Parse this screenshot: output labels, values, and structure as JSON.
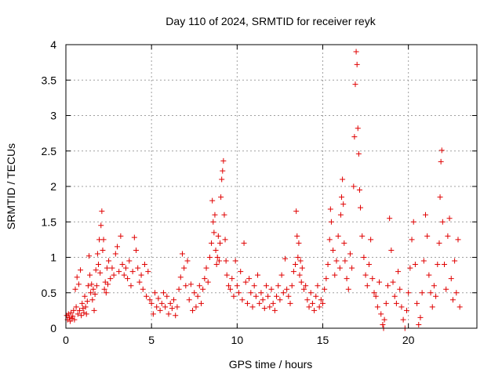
{
  "chart_data": {
    "type": "scatter",
    "title": "Day 110 of 2024, SRMTID for receiver reyk",
    "xlabel": "GPS time / hours",
    "ylabel": "SRMTID / TECUs",
    "xlim": [
      0,
      24
    ],
    "ylim": [
      0,
      4
    ],
    "xticks": [
      0,
      5,
      10,
      15,
      20
    ],
    "yticks": [
      0,
      0.5,
      1,
      1.5,
      2,
      2.5,
      3,
      3.5,
      4
    ],
    "xtick_labels": [
      "0",
      "5",
      "10",
      "15",
      "20"
    ],
    "ytick_labels": [
      "0",
      "0.5",
      "1",
      "1.5",
      "2",
      "2.5",
      "3",
      "3.5",
      "4"
    ],
    "grid": true,
    "marker": "+",
    "color": "#e00000",
    "series": [
      {
        "name": "SRMTID",
        "points": [
          [
            0.05,
            0.18
          ],
          [
            0.1,
            0.12
          ],
          [
            0.15,
            0.2
          ],
          [
            0.2,
            0.15
          ],
          [
            0.25,
            0.1
          ],
          [
            0.3,
            0.22
          ],
          [
            0.35,
            0.14
          ],
          [
            0.4,
            0.17
          ],
          [
            0.45,
            0.25
          ],
          [
            0.5,
            0.12
          ],
          [
            0.55,
            0.55
          ],
          [
            0.6,
            0.3
          ],
          [
            0.65,
            0.72
          ],
          [
            0.7,
            0.2
          ],
          [
            0.75,
            0.62
          ],
          [
            0.8,
            0.25
          ],
          [
            0.85,
            0.82
          ],
          [
            0.9,
            0.18
          ],
          [
            0.95,
            0.35
          ],
          [
            1.0,
            0.28
          ],
          [
            1.05,
            0.22
          ],
          [
            1.1,
            0.45
          ],
          [
            1.15,
            0.3
          ],
          [
            1.2,
            0.2
          ],
          [
            1.25,
            0.38
          ],
          [
            1.3,
            0.6
          ],
          [
            1.35,
            1.02
          ],
          [
            1.4,
            0.75
          ],
          [
            1.45,
            0.5
          ],
          [
            1.5,
            0.62
          ],
          [
            1.55,
            0.4
          ],
          [
            1.6,
            0.55
          ],
          [
            1.65,
            0.25
          ],
          [
            1.7,
            0.48
          ],
          [
            1.75,
            0.82
          ],
          [
            1.8,
            0.6
          ],
          [
            1.85,
            1.05
          ],
          [
            1.9,
            0.9
          ],
          [
            1.95,
            1.25
          ],
          [
            2.0,
            0.78
          ],
          [
            2.05,
            1.45
          ],
          [
            2.1,
            1.65
          ],
          [
            2.15,
            1.1
          ],
          [
            2.2,
            1.25
          ],
          [
            2.25,
            0.55
          ],
          [
            2.3,
            0.65
          ],
          [
            2.35,
            0.5
          ],
          [
            2.4,
            0.85
          ],
          [
            2.45,
            0.62
          ],
          [
            2.5,
            0.95
          ],
          [
            2.6,
            0.7
          ],
          [
            2.7,
            0.85
          ],
          [
            2.8,
            0.75
          ],
          [
            2.9,
            1.05
          ],
          [
            3.0,
            1.15
          ],
          [
            3.1,
            0.8
          ],
          [
            3.2,
            1.3
          ],
          [
            3.3,
            0.9
          ],
          [
            3.4,
            0.75
          ],
          [
            3.5,
            0.85
          ],
          [
            3.6,
            0.7
          ],
          [
            3.7,
            0.95
          ],
          [
            3.8,
            0.6
          ],
          [
            3.9,
            0.8
          ],
          [
            4.0,
            1.28
          ],
          [
            4.1,
            1.1
          ],
          [
            4.2,
            0.85
          ],
          [
            4.3,
            0.65
          ],
          [
            4.4,
            0.75
          ],
          [
            4.5,
            0.55
          ],
          [
            4.6,
            0.9
          ],
          [
            4.7,
            0.45
          ],
          [
            4.8,
            0.8
          ],
          [
            4.9,
            0.4
          ],
          [
            5.0,
            0.35
          ],
          [
            5.1,
            0.2
          ],
          [
            5.2,
            0.5
          ],
          [
            5.3,
            0.3
          ],
          [
            5.4,
            0.42
          ],
          [
            5.5,
            0.25
          ],
          [
            5.6,
            0.35
          ],
          [
            5.7,
            0.5
          ],
          [
            5.8,
            0.3
          ],
          [
            5.9,
            0.45
          ],
          [
            6.0,
            0.2
          ],
          [
            6.1,
            0.35
          ],
          [
            6.2,
            0.28
          ],
          [
            6.3,
            0.4
          ],
          [
            6.4,
            0.18
          ],
          [
            6.5,
            0.3
          ],
          [
            6.6,
            0.55
          ],
          [
            6.7,
            0.72
          ],
          [
            6.8,
            1.05
          ],
          [
            6.9,
            0.85
          ],
          [
            7.0,
            0.6
          ],
          [
            7.1,
            0.95
          ],
          [
            7.2,
            0.4
          ],
          [
            7.3,
            0.62
          ],
          [
            7.4,
            0.25
          ],
          [
            7.5,
            0.5
          ],
          [
            7.6,
            0.3
          ],
          [
            7.7,
            0.45
          ],
          [
            7.8,
            0.6
          ],
          [
            7.9,
            0.35
          ],
          [
            8.0,
            0.55
          ],
          [
            8.1,
            0.7
          ],
          [
            8.2,
            0.85
          ],
          [
            8.3,
            0.65
          ],
          [
            8.4,
            1.0
          ],
          [
            8.5,
            1.2
          ],
          [
            8.55,
            1.8
          ],
          [
            8.6,
            1.5
          ],
          [
            8.65,
            1.35
          ],
          [
            8.7,
            1.6
          ],
          [
            8.75,
            1.1
          ],
          [
            8.8,
            0.9
          ],
          [
            8.85,
            1.0
          ],
          [
            8.9,
            1.3
          ],
          [
            8.95,
            0.95
          ],
          [
            9.0,
            1.2
          ],
          [
            9.05,
            1.85
          ],
          [
            9.1,
            2.1
          ],
          [
            9.15,
            2.22
          ],
          [
            9.2,
            2.36
          ],
          [
            9.25,
            1.6
          ],
          [
            9.3,
            1.25
          ],
          [
            9.35,
            0.95
          ],
          [
            9.4,
            0.75
          ],
          [
            9.5,
            0.6
          ],
          [
            9.6,
            0.55
          ],
          [
            9.7,
            0.7
          ],
          [
            9.8,
            0.45
          ],
          [
            9.9,
            0.95
          ],
          [
            10.0,
            0.6
          ],
          [
            10.1,
            0.5
          ],
          [
            10.2,
            0.8
          ],
          [
            10.3,
            0.4
          ],
          [
            10.4,
            1.2
          ],
          [
            10.5,
            0.65
          ],
          [
            10.6,
            0.35
          ],
          [
            10.7,
            0.7
          ],
          [
            10.8,
            0.5
          ],
          [
            10.9,
            0.3
          ],
          [
            11.0,
            0.6
          ],
          [
            11.1,
            0.45
          ],
          [
            11.2,
            0.75
          ],
          [
            11.3,
            0.35
          ],
          [
            11.4,
            0.5
          ],
          [
            11.5,
            0.4
          ],
          [
            11.6,
            0.28
          ],
          [
            11.7,
            0.6
          ],
          [
            11.8,
            0.45
          ],
          [
            11.9,
            0.3
          ],
          [
            12.0,
            0.55
          ],
          [
            12.1,
            0.35
          ],
          [
            12.2,
            0.25
          ],
          [
            12.3,
            0.45
          ],
          [
            12.4,
            0.6
          ],
          [
            12.5,
            0.4
          ],
          [
            12.6,
            0.75
          ],
          [
            12.7,
            0.5
          ],
          [
            12.8,
            0.98
          ],
          [
            12.9,
            0.55
          ],
          [
            13.0,
            0.45
          ],
          [
            13.1,
            0.35
          ],
          [
            13.2,
            0.6
          ],
          [
            13.3,
            0.8
          ],
          [
            13.4,
            0.9
          ],
          [
            13.45,
            1.65
          ],
          [
            13.5,
            1.3
          ],
          [
            13.55,
            1.0
          ],
          [
            13.6,
            1.2
          ],
          [
            13.65,
            0.75
          ],
          [
            13.7,
            0.95
          ],
          [
            13.75,
            0.65
          ],
          [
            13.8,
            0.85
          ],
          [
            13.9,
            0.55
          ],
          [
            14.0,
            0.6
          ],
          [
            14.1,
            0.4
          ],
          [
            14.2,
            0.3
          ],
          [
            14.3,
            0.5
          ],
          [
            14.4,
            0.35
          ],
          [
            14.5,
            0.25
          ],
          [
            14.6,
            0.45
          ],
          [
            14.7,
            0.6
          ],
          [
            14.8,
            0.3
          ],
          [
            14.9,
            0.4
          ],
          [
            15.0,
            0.35
          ],
          [
            15.1,
            0.55
          ],
          [
            15.2,
            0.7
          ],
          [
            15.3,
            0.9
          ],
          [
            15.4,
            1.25
          ],
          [
            15.45,
            1.68
          ],
          [
            15.5,
            1.5
          ],
          [
            15.6,
            1.1
          ],
          [
            15.7,
            0.75
          ],
          [
            15.8,
            0.95
          ],
          [
            15.9,
            1.3
          ],
          [
            16.0,
            0.85
          ],
          [
            16.05,
            1.6
          ],
          [
            16.1,
            1.85
          ],
          [
            16.15,
            2.1
          ],
          [
            16.2,
            1.75
          ],
          [
            16.25,
            1.2
          ],
          [
            16.3,
            0.95
          ],
          [
            16.4,
            0.7
          ],
          [
            16.5,
            0.55
          ],
          [
            16.6,
            1.05
          ],
          [
            16.7,
            0.85
          ],
          [
            16.8,
            2.0
          ],
          [
            16.85,
            2.7
          ],
          [
            16.9,
            3.44
          ],
          [
            16.95,
            3.9
          ],
          [
            17.0,
            3.72
          ],
          [
            17.05,
            2.82
          ],
          [
            17.1,
            2.46
          ],
          [
            17.15,
            1.95
          ],
          [
            17.2,
            1.7
          ],
          [
            17.3,
            1.3
          ],
          [
            17.4,
            1.0
          ],
          [
            17.5,
            0.75
          ],
          [
            17.6,
            0.6
          ],
          [
            17.7,
            0.9
          ],
          [
            17.8,
            1.25
          ],
          [
            17.9,
            0.7
          ],
          [
            18.0,
            0.5
          ],
          [
            18.1,
            0.45
          ],
          [
            18.2,
            0.3
          ],
          [
            18.3,
            0.65
          ],
          [
            18.4,
            0.2
          ],
          [
            18.5,
            0.05
          ],
          [
            18.55,
            0.0
          ],
          [
            18.6,
            0.12
          ],
          [
            18.7,
            0.35
          ],
          [
            18.8,
            0.6
          ],
          [
            18.9,
            1.55
          ],
          [
            19.0,
            1.1
          ],
          [
            19.1,
            0.65
          ],
          [
            19.2,
            0.45
          ],
          [
            19.3,
            0.35
          ],
          [
            19.4,
            0.8
          ],
          [
            19.5,
            0.55
          ],
          [
            19.6,
            0.3
          ],
          [
            19.7,
            0.12
          ],
          [
            19.8,
            0.0
          ],
          [
            19.9,
            0.25
          ],
          [
            20.0,
            0.5
          ],
          [
            20.1,
            0.85
          ],
          [
            20.2,
            1.25
          ],
          [
            20.3,
            1.5
          ],
          [
            20.4,
            0.9
          ],
          [
            20.5,
            0.35
          ],
          [
            20.6,
            0.05
          ],
          [
            20.7,
            0.15
          ],
          [
            20.8,
            0.5
          ],
          [
            20.9,
            0.95
          ],
          [
            21.0,
            1.6
          ],
          [
            21.1,
            1.3
          ],
          [
            21.2,
            0.75
          ],
          [
            21.3,
            0.5
          ],
          [
            21.4,
            0.3
          ],
          [
            21.5,
            0.6
          ],
          [
            21.6,
            0.45
          ],
          [
            21.7,
            0.9
          ],
          [
            21.8,
            1.2
          ],
          [
            21.85,
            1.85
          ],
          [
            21.9,
            2.35
          ],
          [
            21.95,
            2.51
          ],
          [
            22.0,
            1.5
          ],
          [
            22.1,
            0.9
          ],
          [
            22.2,
            0.55
          ],
          [
            22.3,
            1.3
          ],
          [
            22.4,
            1.55
          ],
          [
            22.5,
            0.7
          ],
          [
            22.6,
            0.4
          ],
          [
            22.7,
            0.95
          ],
          [
            22.8,
            0.5
          ],
          [
            22.9,
            1.25
          ],
          [
            23.0,
            0.3
          ]
        ]
      }
    ]
  }
}
